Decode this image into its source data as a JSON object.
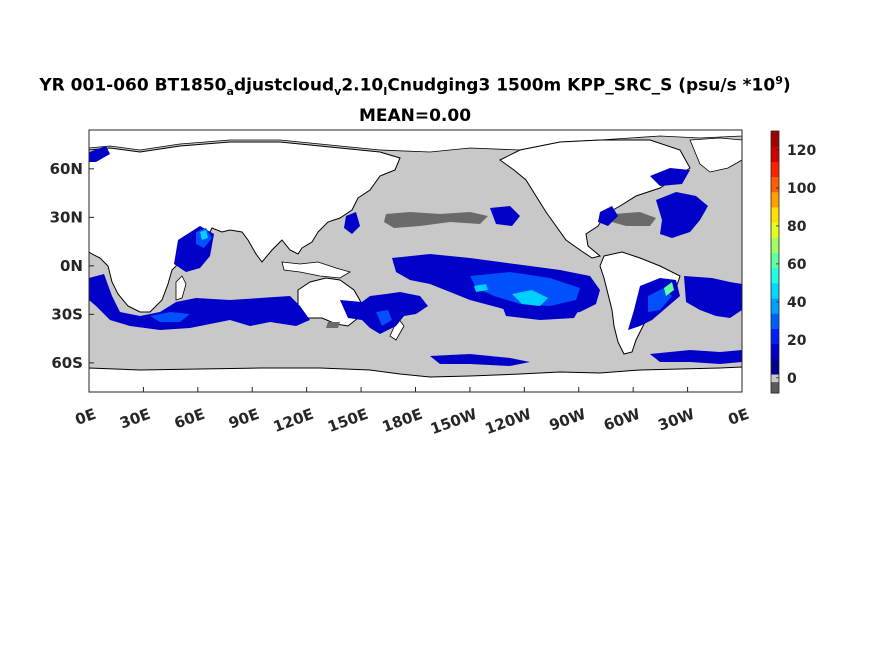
{
  "chart_data": {
    "type": "heatmap",
    "title_parts": {
      "pre": "YR 001-060 BT1850",
      "sub1": "a",
      "mid1": "djustcloud",
      "sub2": "v",
      "mid2": "2.10",
      "sub3": "I",
      "mid3": "Cnudging3 1500m KPP_SRC_S (psu/s *10",
      "sup": "9",
      "post": ")"
    },
    "subtitle": "MEAN=0.00",
    "x_ticks": [
      "0E",
      "30E",
      "60E",
      "90E",
      "120E",
      "150E",
      "180E",
      "150W",
      "120W",
      "90W",
      "60W",
      "30W",
      "0E"
    ],
    "y_ticks": [
      "60N",
      "30N",
      "0N",
      "30S",
      "60S"
    ],
    "y_tick_values": [
      60,
      30,
      0,
      -30,
      -60
    ],
    "xlim": [
      0,
      360
    ],
    "ylim": [
      -78,
      84
    ],
    "colorbar": {
      "ticks": [
        0,
        20,
        40,
        60,
        80,
        100,
        120
      ],
      "range": [
        -8,
        130
      ],
      "colors": [
        "#5a5a5a",
        "#c8c8c8",
        "#00008f",
        "#0000c8",
        "#0020ff",
        "#0060ff",
        "#00a0ff",
        "#00d8ff",
        "#20ffe0",
        "#60ffa0",
        "#a0ff60",
        "#e0ff20",
        "#ffe000",
        "#ffa000",
        "#ff6000",
        "#ff2000",
        "#d00000",
        "#a00000"
      ]
    },
    "colors": {
      "land": "#ffffff",
      "zero": "#c8c8c8",
      "negative": "#6a6a6a",
      "low": "#0000c8",
      "mid": "#0050ff",
      "high": "#00d0ff",
      "peak": "#60ffa0"
    }
  }
}
